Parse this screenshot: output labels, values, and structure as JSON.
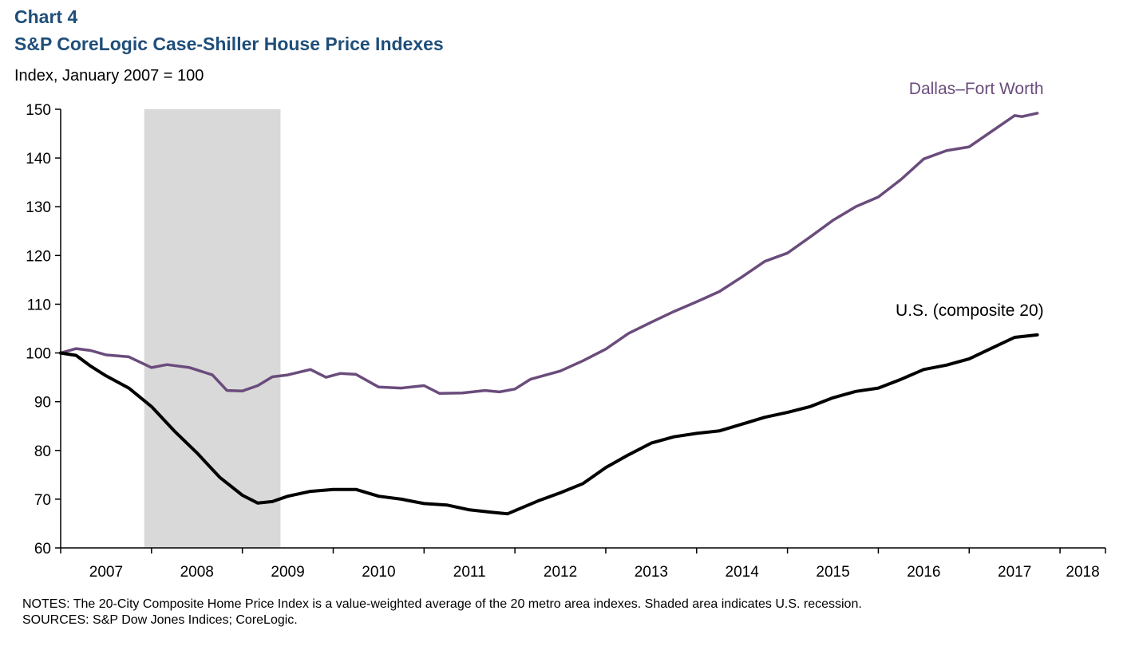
{
  "header": {
    "chart_number": "Chart 4",
    "title": "S&P CoreLogic Case-Shiller House Price Indexes",
    "unit": "Index, January 2007 = 100"
  },
  "footer": {
    "notes": "NOTES: The 20-City Composite Home Price Index is a value-weighted average of the 20 metro area indexes. Shaded area indicates U.S. recession.",
    "sources": "SOURCES: S&P Dow Jones Indices; CoreLogic."
  },
  "chart_data": {
    "type": "line",
    "title": "S&P CoreLogic Case-Shiller House Price Indexes",
    "ylabel": "Index, January 2007 = 100",
    "xlabel": "",
    "ylim": [
      60,
      150
    ],
    "yticks": [
      60,
      70,
      80,
      90,
      100,
      110,
      120,
      130,
      140,
      150
    ],
    "xlim": [
      2007.0,
      2018.5
    ],
    "xtick_labels": [
      "2007",
      "2008",
      "2009",
      "2010",
      "2011",
      "2012",
      "2013",
      "2014",
      "2015",
      "2016",
      "2017",
      "2018"
    ],
    "grid": false,
    "legend": "direct labels",
    "recession": {
      "start": 2007.92,
      "end": 2009.42,
      "color": "#d9d9d9"
    },
    "series": [
      {
        "name": "Dallas–Fort Worth",
        "color": "#6a4c7c",
        "points": [
          [
            2007.0,
            100.0
          ],
          [
            2007.17,
            100.9
          ],
          [
            2007.33,
            100.5
          ],
          [
            2007.5,
            99.6
          ],
          [
            2007.75,
            99.2
          ],
          [
            2008.0,
            97.0
          ],
          [
            2008.17,
            97.6
          ],
          [
            2008.42,
            97.0
          ],
          [
            2008.67,
            95.5
          ],
          [
            2008.83,
            92.3
          ],
          [
            2009.0,
            92.2
          ],
          [
            2009.17,
            93.3
          ],
          [
            2009.33,
            95.1
          ],
          [
            2009.5,
            95.5
          ],
          [
            2009.75,
            96.6
          ],
          [
            2009.92,
            95.0
          ],
          [
            2010.08,
            95.8
          ],
          [
            2010.25,
            95.6
          ],
          [
            2010.5,
            93.0
          ],
          [
            2010.75,
            92.8
          ],
          [
            2011.0,
            93.3
          ],
          [
            2011.17,
            91.7
          ],
          [
            2011.42,
            91.8
          ],
          [
            2011.67,
            92.3
          ],
          [
            2011.83,
            92.0
          ],
          [
            2012.0,
            92.6
          ],
          [
            2012.17,
            94.6
          ],
          [
            2012.5,
            96.3
          ],
          [
            2012.75,
            98.4
          ],
          [
            2013.0,
            100.8
          ],
          [
            2013.25,
            104.0
          ],
          [
            2013.5,
            106.3
          ],
          [
            2013.75,
            108.5
          ],
          [
            2014.0,
            110.5
          ],
          [
            2014.25,
            112.6
          ],
          [
            2014.5,
            115.6
          ],
          [
            2014.75,
            118.8
          ],
          [
            2015.0,
            120.5
          ],
          [
            2015.25,
            123.8
          ],
          [
            2015.5,
            127.2
          ],
          [
            2015.75,
            130.0
          ],
          [
            2016.0,
            132.0
          ],
          [
            2016.25,
            135.6
          ],
          [
            2016.5,
            139.8
          ],
          [
            2016.75,
            141.5
          ],
          [
            2017.0,
            142.3
          ],
          [
            2017.25,
            145.5
          ],
          [
            2017.5,
            148.7
          ],
          [
            2017.58,
            148.5
          ],
          [
            2017.75,
            149.2
          ]
        ]
      },
      {
        "name": "U.S. (composite 20)",
        "color": "#000000",
        "points": [
          [
            2007.0,
            100.0
          ],
          [
            2007.17,
            99.5
          ],
          [
            2007.33,
            97.3
          ],
          [
            2007.5,
            95.3
          ],
          [
            2007.75,
            92.8
          ],
          [
            2008.0,
            89.0
          ],
          [
            2008.25,
            84.0
          ],
          [
            2008.5,
            79.5
          ],
          [
            2008.75,
            74.5
          ],
          [
            2009.0,
            70.8
          ],
          [
            2009.17,
            69.2
          ],
          [
            2009.33,
            69.5
          ],
          [
            2009.5,
            70.6
          ],
          [
            2009.75,
            71.6
          ],
          [
            2010.0,
            72.0
          ],
          [
            2010.25,
            72.0
          ],
          [
            2010.5,
            70.6
          ],
          [
            2010.75,
            70.0
          ],
          [
            2011.0,
            69.1
          ],
          [
            2011.25,
            68.8
          ],
          [
            2011.5,
            67.8
          ],
          [
            2011.75,
            67.3
          ],
          [
            2011.92,
            67.0
          ],
          [
            2012.25,
            69.6
          ],
          [
            2012.5,
            71.3
          ],
          [
            2012.75,
            73.2
          ],
          [
            2013.0,
            76.5
          ],
          [
            2013.25,
            79.1
          ],
          [
            2013.5,
            81.5
          ],
          [
            2013.75,
            82.8
          ],
          [
            2014.0,
            83.5
          ],
          [
            2014.25,
            84.0
          ],
          [
            2014.5,
            85.4
          ],
          [
            2014.75,
            86.8
          ],
          [
            2015.0,
            87.8
          ],
          [
            2015.25,
            89.0
          ],
          [
            2015.5,
            90.8
          ],
          [
            2015.75,
            92.1
          ],
          [
            2016.0,
            92.8
          ],
          [
            2016.25,
            94.6
          ],
          [
            2016.5,
            96.6
          ],
          [
            2016.75,
            97.5
          ],
          [
            2017.0,
            98.8
          ],
          [
            2017.25,
            101.0
          ],
          [
            2017.5,
            103.2
          ],
          [
            2017.75,
            103.7
          ]
        ]
      }
    ]
  }
}
